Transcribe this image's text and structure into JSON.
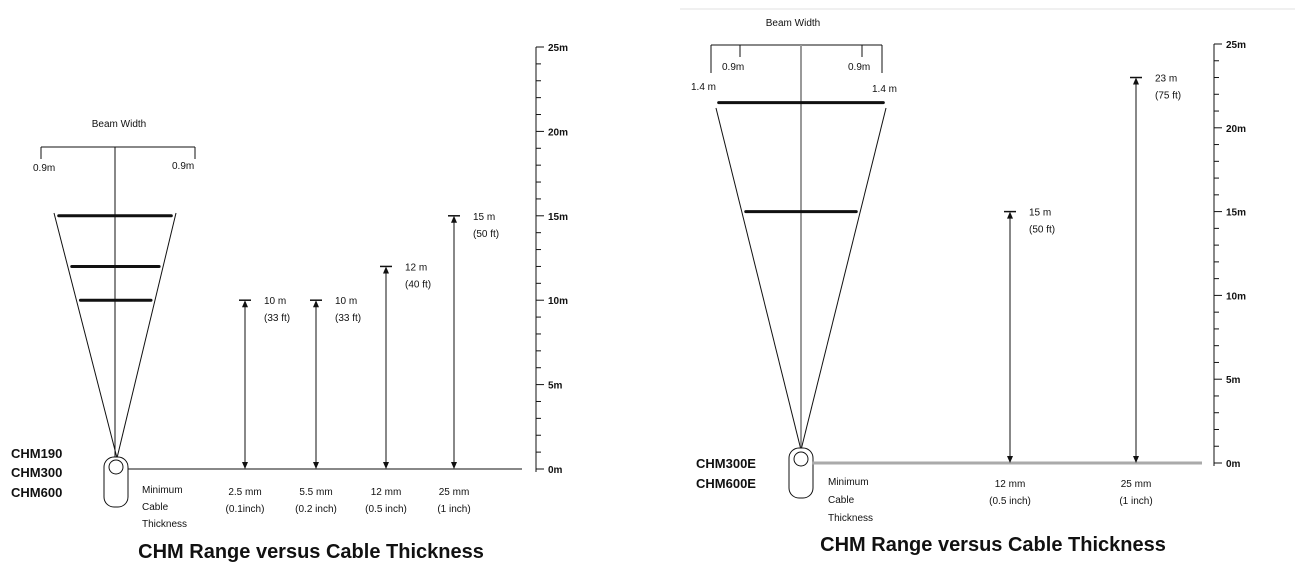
{
  "left": {
    "beam_label": "Beam Width",
    "beam_left": "0.9m",
    "beam_right": "0.9m",
    "models": [
      "CHM190",
      "CHM300",
      "CHM600"
    ],
    "min_cable": [
      "Minimum",
      "Cable",
      "Thickness"
    ],
    "axis_ticks": [
      "25m",
      "20m",
      "15m",
      "10m",
      "5m",
      "0m"
    ],
    "caption": "CHM Range versus Cable Thickness"
  },
  "right": {
    "beam_label": "Beam Width",
    "beam_inner_left": "0.9m",
    "beam_inner_right": "0.9m",
    "beam_outer_left": "1.4 m",
    "beam_outer_right": "1.4 m",
    "models": [
      "CHM300E",
      "CHM600E"
    ],
    "min_cable": [
      "Minimum",
      "Cable",
      "Thickness"
    ],
    "axis_ticks": [
      "25m",
      "20m",
      "15m",
      "10m",
      "5m",
      "0m"
    ],
    "caption": "CHM Range versus Cable Thickness"
  },
  "chart_data": [
    {
      "type": "bar",
      "title": "CHM Range versus Cable Thickness",
      "ylim": [
        0,
        25
      ],
      "categories": [
        "2.5 mm (0.1inch)",
        "5.5 mm (0.2 inch)",
        "12 mm (0.5 inch)",
        "25 mm (1 inch)"
      ],
      "category_lines": [
        [
          "2.5 mm",
          "(0.1inch)"
        ],
        [
          "5.5 mm",
          "(0.2 inch)"
        ],
        [
          "12 mm",
          "(0.5 inch)"
        ],
        [
          "25 mm",
          "(1 inch)"
        ]
      ],
      "values": [
        10,
        10,
        12,
        15
      ],
      "value_labels": [
        [
          "10 m",
          "(33 ft)"
        ],
        [
          "10 m",
          "(33 ft)"
        ],
        [
          "12 m",
          "(40 ft)"
        ],
        [
          "15 m",
          "(50 ft)"
        ]
      ],
      "beam_bars_m": [
        15,
        12,
        10
      ]
    },
    {
      "type": "bar",
      "title": "CHM Range versus Cable Thickness",
      "ylim": [
        0,
        25
      ],
      "categories": [
        "12 mm (0.5 inch)",
        "25 mm (1 inch)"
      ],
      "category_lines": [
        [
          "12 mm",
          "(0.5 inch)"
        ],
        [
          "25 mm",
          "(1 inch)"
        ]
      ],
      "values": [
        15,
        23
      ],
      "value_labels": [
        [
          "15 m",
          "(50 ft)"
        ],
        [
          "23 m",
          "(75 ft)"
        ]
      ],
      "beam_bars_m": [
        21.5,
        15
      ]
    }
  ]
}
